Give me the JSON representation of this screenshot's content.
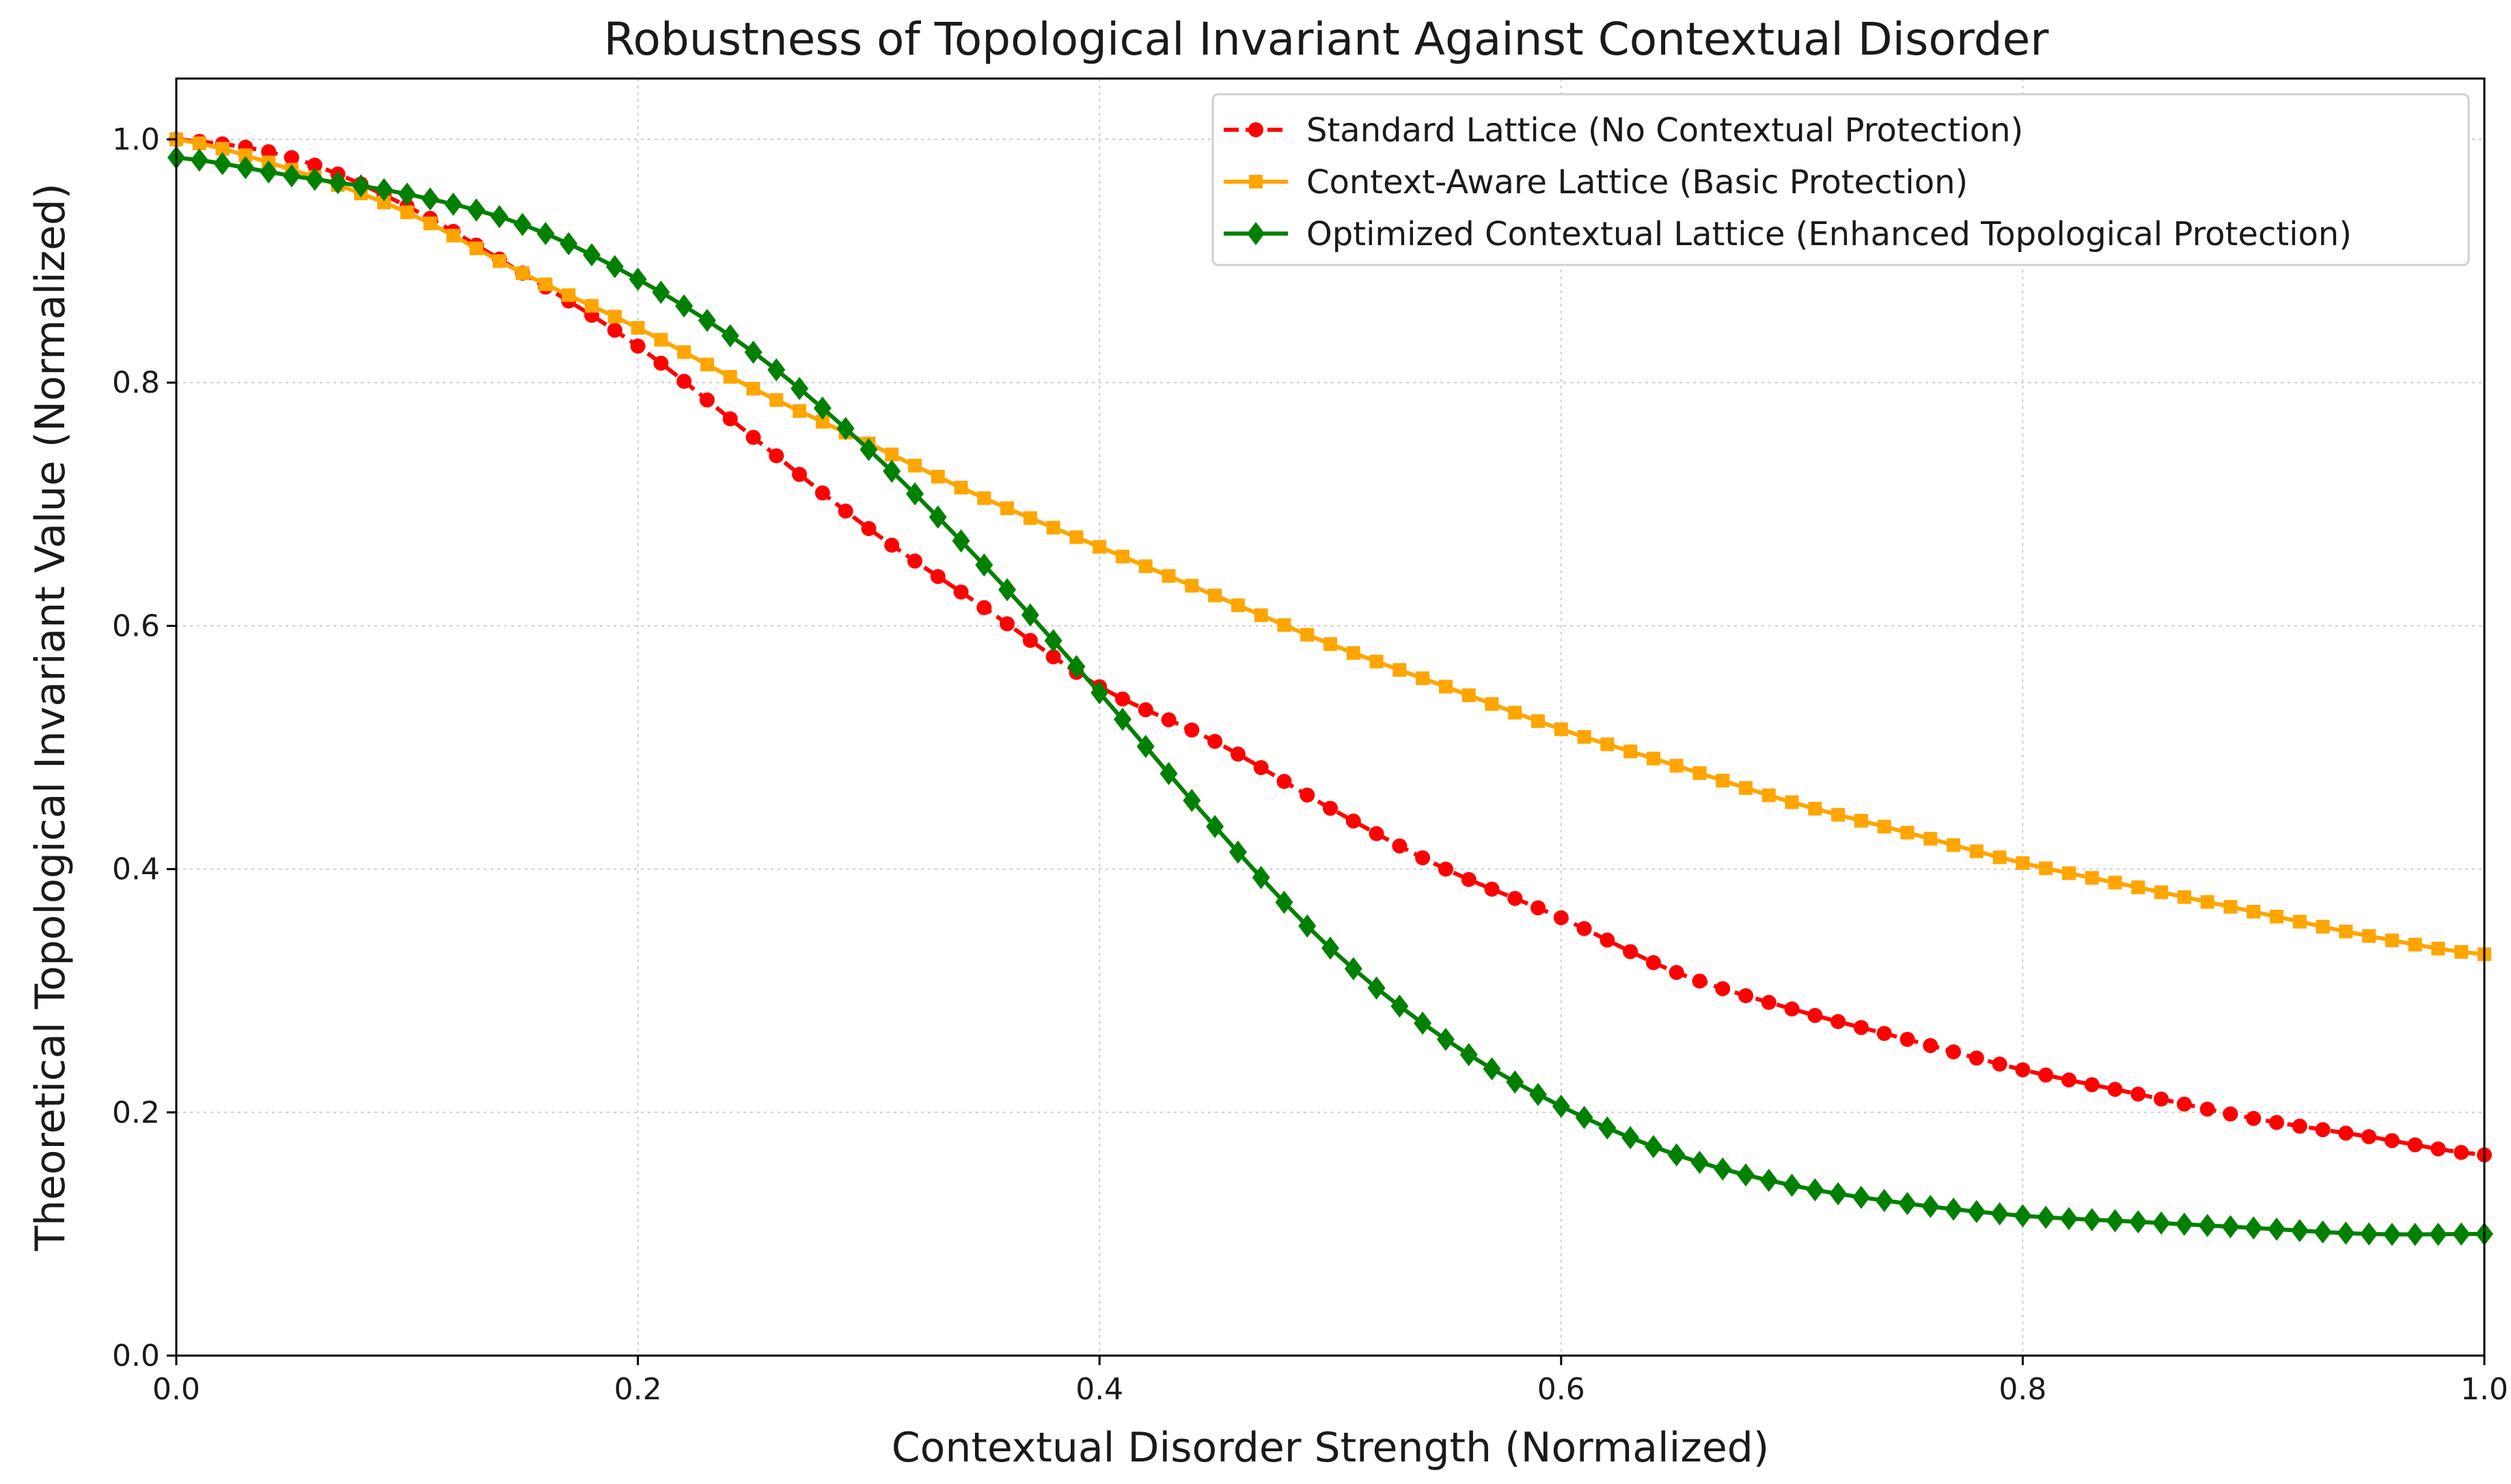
{
  "chart_data": {
    "type": "line",
    "title": "Robustness of Topological Invariant Against Contextual Disorder",
    "xlabel": "Contextual Disorder Strength (Normalized)",
    "ylabel": "Theoretical Topological Invariant Value (Normalized)",
    "xlim": [
      0.0,
      1.0
    ],
    "ylim": [
      0.0,
      1.05
    ],
    "x_ticks": [
      0.0,
      0.2,
      0.4,
      0.6,
      0.8,
      1.0
    ],
    "x_tick_labels": [
      "0.0",
      "0.2",
      "0.4",
      "0.6",
      "0.8",
      "1.0"
    ],
    "y_ticks": [
      0.0,
      0.2,
      0.4,
      0.6,
      0.8,
      1.0
    ],
    "y_tick_labels": [
      "0.0",
      "0.2",
      "0.4",
      "0.6",
      "0.8",
      "1.0"
    ],
    "grid": true,
    "legend_position": "top-right",
    "x": [
      0.0,
      0.05,
      0.1,
      0.15,
      0.2,
      0.25,
      0.3,
      0.35,
      0.4,
      0.45,
      0.5,
      0.55,
      0.6,
      0.65,
      0.7,
      0.75,
      0.8,
      0.85,
      0.9,
      0.95,
      1.0
    ],
    "series": [
      {
        "name": "Standard Lattice (No Contextual Protection)",
        "color": "#ff0000",
        "line_style": "dashed",
        "marker": "circle",
        "values": [
          1.0,
          0.985,
          0.945,
          0.89,
          0.83,
          0.755,
          0.68,
          0.615,
          0.55,
          0.505,
          0.45,
          0.4,
          0.36,
          0.315,
          0.285,
          0.26,
          0.235,
          0.215,
          0.195,
          0.18,
          0.165
        ]
      },
      {
        "name": "Context-Aware Lattice (Basic Protection)",
        "color": "#ffa500",
        "line_style": "solid",
        "marker": "square",
        "values": [
          1.0,
          0.975,
          0.94,
          0.89,
          0.845,
          0.795,
          0.75,
          0.705,
          0.665,
          0.625,
          0.585,
          0.55,
          0.515,
          0.485,
          0.455,
          0.43,
          0.405,
          0.385,
          0.365,
          0.345,
          0.33
        ]
      },
      {
        "name": "Optimized Contextual Lattice (Enhanced Topological Protection)",
        "color": "#008000",
        "line_style": "solid",
        "marker": "diamond",
        "values": [
          0.985,
          0.97,
          0.955,
          0.93,
          0.885,
          0.825,
          0.745,
          0.65,
          0.545,
          0.435,
          0.335,
          0.26,
          0.205,
          0.165,
          0.14,
          0.125,
          0.115,
          0.11,
          0.105,
          0.1,
          0.1
        ]
      }
    ]
  }
}
